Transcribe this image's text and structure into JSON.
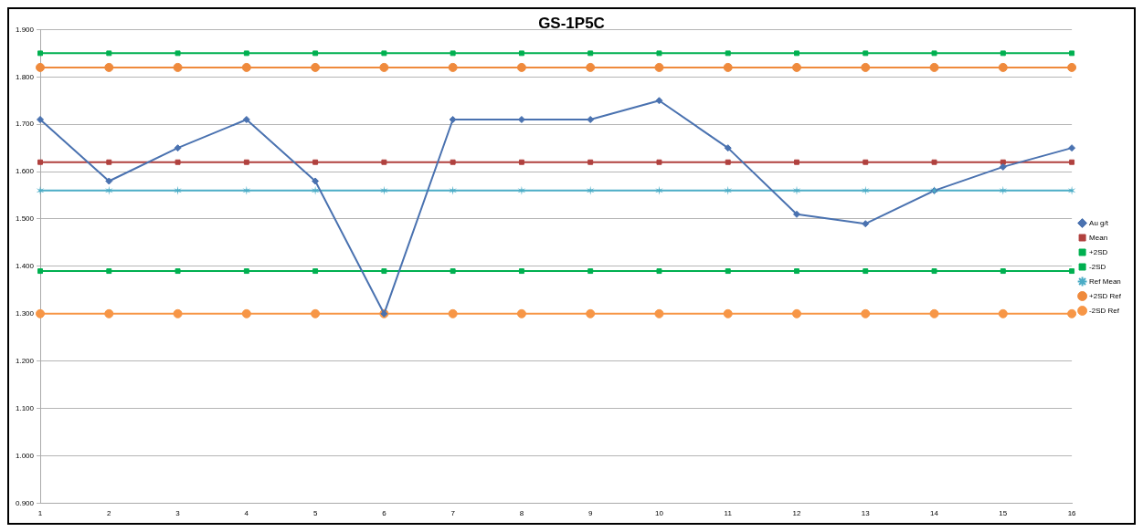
{
  "chart_data": {
    "type": "line",
    "title": "GS-1P5C",
    "categories": [
      "1",
      "2",
      "3",
      "4",
      "5",
      "6",
      "7",
      "8",
      "9",
      "10",
      "11",
      "12",
      "13",
      "14",
      "15",
      "16"
    ],
    "series": [
      {
        "name": "Au g/t",
        "color": "#4a72b0",
        "marker": "diamond",
        "values": [
          1.71,
          1.58,
          1.65,
          1.71,
          1.58,
          1.3,
          1.71,
          1.71,
          1.71,
          1.75,
          1.65,
          1.51,
          1.49,
          1.56,
          1.61,
          1.65
        ]
      },
      {
        "name": "Mean",
        "color": "#b0413e",
        "marker": "square",
        "values": [
          1.62,
          1.62,
          1.62,
          1.62,
          1.62,
          1.62,
          1.62,
          1.62,
          1.62,
          1.62,
          1.62,
          1.62,
          1.62,
          1.62,
          1.62,
          1.62
        ]
      },
      {
        "name": "+2SD",
        "color": "#00b050",
        "marker": "square",
        "values": [
          1.85,
          1.85,
          1.85,
          1.85,
          1.85,
          1.85,
          1.85,
          1.85,
          1.85,
          1.85,
          1.85,
          1.85,
          1.85,
          1.85,
          1.85,
          1.85
        ]
      },
      {
        "name": "-2SD",
        "color": "#00b050",
        "marker": "square",
        "values": [
          1.39,
          1.39,
          1.39,
          1.39,
          1.39,
          1.39,
          1.39,
          1.39,
          1.39,
          1.39,
          1.39,
          1.39,
          1.39,
          1.39,
          1.39,
          1.39
        ]
      },
      {
        "name": "Ref Mean",
        "color": "#4bacc6",
        "marker": "cross",
        "values": [
          1.56,
          1.56,
          1.56,
          1.56,
          1.56,
          1.56,
          1.56,
          1.56,
          1.56,
          1.56,
          1.56,
          1.56,
          1.56,
          1.56,
          1.56,
          1.56
        ]
      },
      {
        "name": "+2SD Ref",
        "color": "#ef8a3c",
        "marker": "circle",
        "values": [
          1.82,
          1.82,
          1.82,
          1.82,
          1.82,
          1.82,
          1.82,
          1.82,
          1.82,
          1.82,
          1.82,
          1.82,
          1.82,
          1.82,
          1.82,
          1.82
        ]
      },
      {
        "name": "-2SD Ref",
        "color": "#f79646",
        "marker": "circle",
        "values": [
          1.3,
          1.3,
          1.3,
          1.3,
          1.3,
          1.3,
          1.3,
          1.3,
          1.3,
          1.3,
          1.3,
          1.3,
          1.3,
          1.3,
          1.3,
          1.3
        ]
      }
    ],
    "ylim": [
      0.9,
      1.9
    ],
    "yticks": [
      {
        "value": 0.9,
        "label": "0.900"
      },
      {
        "value": 1.0,
        "label": "1.000"
      },
      {
        "value": 1.1,
        "label": "1.100"
      },
      {
        "value": 1.2,
        "label": "1.200"
      },
      {
        "value": 1.3,
        "label": "1.300"
      },
      {
        "value": 1.4,
        "label": "1.400"
      },
      {
        "value": 1.5,
        "label": "1.500"
      },
      {
        "value": 1.6,
        "label": "1.600"
      },
      {
        "value": 1.7,
        "label": "1.700"
      },
      {
        "value": 1.8,
        "label": "1.800"
      },
      {
        "value": 1.9,
        "label": "1.900"
      }
    ],
    "grid": "y",
    "legend": "right"
  }
}
